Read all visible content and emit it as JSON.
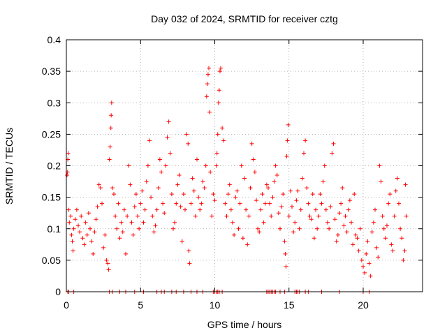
{
  "chart_data": {
    "type": "scatter",
    "title": "Day 032 of 2024, SRMTID for receiver cztg",
    "xlabel": "GPS time / hours",
    "ylabel": "SRMTID / TECUs",
    "xlim": [
      0,
      24
    ],
    "ylim": [
      0,
      0.4
    ],
    "x_ticks": [
      0,
      5,
      10,
      15,
      20
    ],
    "x_tick_labels": [
      "0",
      "5",
      "10",
      "15",
      "20"
    ],
    "y_ticks": [
      0,
      0.05,
      0.1,
      0.15,
      0.2,
      0.25,
      0.3,
      0.35,
      0.4
    ],
    "y_tick_labels": [
      "0",
      "0.05",
      "0.1",
      "0.15",
      "0.2",
      "0.25",
      "0.3",
      "0.35",
      "0.4"
    ],
    "grid": true,
    "marker": "+",
    "color": "#ff0000",
    "series": [
      {
        "name": "SRMTID",
        "points": [
          [
            0.05,
            0.185
          ],
          [
            0.08,
            0.19
          ],
          [
            0.1,
            0.21
          ],
          [
            0.12,
            0.22
          ],
          [
            0.15,
            0.13
          ],
          [
            0.2,
            0.11
          ],
          [
            0.3,
            0.12
          ],
          [
            0.35,
            0.09
          ],
          [
            0.4,
            0.08
          ],
          [
            0.45,
            0.065
          ],
          [
            0.5,
            0.1
          ],
          [
            0.6,
            0.115
          ],
          [
            0.7,
            0.13
          ],
          [
            0.8,
            0.105
          ],
          [
            0.9,
            0.095
          ],
          [
            1.0,
            0.12
          ],
          [
            1.1,
            0.085
          ],
          [
            1.2,
            0.075
          ],
          [
            1.3,
            0.11
          ],
          [
            1.4,
            0.09
          ],
          [
            1.5,
            0.125
          ],
          [
            1.6,
            0.1
          ],
          [
            1.7,
            0.08
          ],
          [
            1.8,
            0.06
          ],
          [
            1.9,
            0.095
          ],
          [
            2.0,
            0.115
          ],
          [
            2.1,
            0.135
          ],
          [
            2.2,
            0.17
          ],
          [
            2.3,
            0.165
          ],
          [
            2.4,
            0.14
          ],
          [
            2.5,
            0.07
          ],
          [
            2.6,
            0.09
          ],
          [
            2.7,
            0.05
          ],
          [
            2.8,
            0.045
          ],
          [
            2.85,
            0.035
          ],
          [
            2.9,
            0.21
          ],
          [
            2.95,
            0.23
          ],
          [
            3.0,
            0.26
          ],
          [
            3.02,
            0.28
          ],
          [
            3.05,
            0.3
          ],
          [
            3.1,
            0.165
          ],
          [
            3.2,
            0.155
          ],
          [
            3.3,
            0.12
          ],
          [
            3.4,
            0.1
          ],
          [
            3.5,
            0.14
          ],
          [
            3.6,
            0.085
          ],
          [
            3.7,
            0.11
          ],
          [
            3.8,
            0.095
          ],
          [
            3.9,
            0.13
          ],
          [
            4.0,
            0.06
          ],
          [
            4.1,
            0.12
          ],
          [
            4.2,
            0.2
          ],
          [
            4.3,
            0.17
          ],
          [
            4.4,
            0.11
          ],
          [
            4.5,
            0.09
          ],
          [
            4.6,
            0.135
          ],
          [
            4.7,
            0.155
          ],
          [
            4.8,
            0.12
          ],
          [
            4.9,
            0.1
          ],
          [
            5.0,
            0.14
          ],
          [
            5.1,
            0.16
          ],
          [
            5.2,
            0.11
          ],
          [
            5.3,
            0.13
          ],
          [
            5.4,
            0.175
          ],
          [
            5.5,
            0.2
          ],
          [
            5.6,
            0.24
          ],
          [
            5.7,
            0.15
          ],
          [
            5.8,
            0.12
          ],
          [
            5.9,
            0.095
          ],
          [
            6.0,
            0.105
          ],
          [
            6.1,
            0.13
          ],
          [
            6.2,
            0.165
          ],
          [
            6.3,
            0.21
          ],
          [
            6.4,
            0.19
          ],
          [
            6.5,
            0.14
          ],
          [
            6.6,
            0.125
          ],
          [
            6.7,
            0.2
          ],
          [
            6.8,
            0.245
          ],
          [
            6.9,
            0.27
          ],
          [
            7.0,
            0.22
          ],
          [
            7.1,
            0.155
          ],
          [
            7.2,
            0.1
          ],
          [
            7.3,
            0.11
          ],
          [
            7.4,
            0.14
          ],
          [
            7.5,
            0.17
          ],
          [
            7.6,
            0.185
          ],
          [
            7.7,
            0.135
          ],
          [
            7.8,
            0.08
          ],
          [
            7.9,
            0.155
          ],
          [
            8.0,
            0.13
          ],
          [
            8.1,
            0.25
          ],
          [
            8.2,
            0.235
          ],
          [
            8.25,
            0.065
          ],
          [
            8.3,
            0.045
          ],
          [
            8.4,
            0.14
          ],
          [
            8.5,
            0.18
          ],
          [
            8.6,
            0.16
          ],
          [
            8.7,
            0.12
          ],
          [
            8.8,
            0.21
          ],
          [
            8.9,
            0.15
          ],
          [
            9.0,
            0.13
          ],
          [
            9.1,
            0.14
          ],
          [
            9.2,
            0.175
          ],
          [
            9.3,
            0.165
          ],
          [
            9.4,
            0.2
          ],
          [
            9.45,
            0.31
          ],
          [
            9.5,
            0.33
          ],
          [
            9.55,
            0.345
          ],
          [
            9.6,
            0.355
          ],
          [
            9.65,
            0.285
          ],
          [
            9.7,
            0.19
          ],
          [
            9.8,
            0.12
          ],
          [
            9.9,
            0.155
          ],
          [
            10.0,
            0.145
          ],
          [
            10.1,
            0.2
          ],
          [
            10.15,
            0.22
          ],
          [
            10.2,
            0.25
          ],
          [
            10.25,
            0.3
          ],
          [
            10.3,
            0.32
          ],
          [
            10.35,
            0.35
          ],
          [
            10.4,
            0.355
          ],
          [
            10.5,
            0.26
          ],
          [
            10.6,
            0.24
          ],
          [
            10.7,
            0.14
          ],
          [
            10.8,
            0.12
          ],
          [
            10.9,
            0.155
          ],
          [
            11.0,
            0.17
          ],
          [
            11.1,
            0.13
          ],
          [
            11.2,
            0.11
          ],
          [
            11.3,
            0.09
          ],
          [
            11.4,
            0.15
          ],
          [
            11.5,
            0.16
          ],
          [
            11.6,
            0.1
          ],
          [
            11.7,
            0.14
          ],
          [
            11.8,
            0.2
          ],
          [
            11.9,
            0.085
          ],
          [
            12.0,
            0.18
          ],
          [
            12.1,
            0.13
          ],
          [
            12.2,
            0.075
          ],
          [
            12.3,
            0.12
          ],
          [
            12.4,
            0.165
          ],
          [
            12.5,
            0.235
          ],
          [
            12.6,
            0.21
          ],
          [
            12.7,
            0.19
          ],
          [
            12.8,
            0.145
          ],
          [
            12.9,
            0.1
          ],
          [
            13.0,
            0.095
          ],
          [
            13.1,
            0.13
          ],
          [
            13.2,
            0.155
          ],
          [
            13.3,
            0.11
          ],
          [
            13.4,
            0.14
          ],
          [
            13.5,
            0.17
          ],
          [
            13.6,
            0.165
          ],
          [
            13.7,
            0.14
          ],
          [
            13.8,
            0.12
          ],
          [
            13.9,
            0.15
          ],
          [
            14.0,
            0.175
          ],
          [
            14.1,
            0.2
          ],
          [
            14.2,
            0.185
          ],
          [
            14.3,
            0.125
          ],
          [
            14.4,
            0.1
          ],
          [
            14.5,
            0.135
          ],
          [
            14.6,
            0.155
          ],
          [
            14.7,
            0.08
          ],
          [
            14.75,
            0.06
          ],
          [
            14.8,
            0.04
          ],
          [
            14.85,
            0.215
          ],
          [
            14.9,
            0.24
          ],
          [
            14.95,
            0.265
          ],
          [
            15.0,
            0.12
          ],
          [
            15.1,
            0.16
          ],
          [
            15.2,
            0.135
          ],
          [
            15.3,
            0.095
          ],
          [
            15.4,
            0.11
          ],
          [
            15.5,
            0.145
          ],
          [
            15.6,
            0.16
          ],
          [
            15.7,
            0.1
          ],
          [
            15.8,
            0.13
          ],
          [
            15.9,
            0.18
          ],
          [
            16.0,
            0.22
          ],
          [
            16.1,
            0.24
          ],
          [
            16.2,
            0.165
          ],
          [
            16.3,
            0.14
          ],
          [
            16.4,
            0.12
          ],
          [
            16.5,
            0.115
          ],
          [
            16.6,
            0.155
          ],
          [
            16.7,
            0.085
          ],
          [
            16.8,
            0.13
          ],
          [
            16.9,
            0.1
          ],
          [
            17.0,
            0.12
          ],
          [
            17.1,
            0.155
          ],
          [
            17.2,
            0.14
          ],
          [
            17.3,
            0.175
          ],
          [
            17.4,
            0.2
          ],
          [
            17.5,
            0.13
          ],
          [
            17.6,
            0.11
          ],
          [
            17.7,
            0.1
          ],
          [
            17.8,
            0.135
          ],
          [
            17.9,
            0.22
          ],
          [
            18.0,
            0.235
          ],
          [
            18.1,
            0.115
          ],
          [
            18.2,
            0.08
          ],
          [
            18.3,
            0.09
          ],
          [
            18.4,
            0.125
          ],
          [
            18.5,
            0.14
          ],
          [
            18.6,
            0.165
          ],
          [
            18.7,
            0.105
          ],
          [
            18.8,
            0.12
          ],
          [
            18.9,
            0.095
          ],
          [
            19.0,
            0.13
          ],
          [
            19.1,
            0.145
          ],
          [
            19.2,
            0.11
          ],
          [
            19.3,
            0.075
          ],
          [
            19.4,
            0.155
          ],
          [
            19.5,
            0.09
          ],
          [
            19.6,
            0.085
          ],
          [
            19.7,
            0.065
          ],
          [
            19.8,
            0.1
          ],
          [
            19.9,
            0.05
          ],
          [
            20.0,
            0.04
          ],
          [
            20.1,
            0.03
          ],
          [
            20.2,
            0.06
          ],
          [
            20.3,
            0.08
          ],
          [
            20.4,
            0.045
          ],
          [
            20.5,
            0.025
          ],
          [
            20.6,
            0.095
          ],
          [
            20.7,
            0.11
          ],
          [
            20.8,
            0.13
          ],
          [
            20.9,
            0.07
          ],
          [
            21.0,
            0.055
          ],
          [
            21.1,
            0.2
          ],
          [
            21.2,
            0.175
          ],
          [
            21.3,
            0.12
          ],
          [
            21.4,
            0.1
          ],
          [
            21.5,
            0.085
          ],
          [
            21.6,
            0.105
          ],
          [
            21.7,
            0.14
          ],
          [
            21.8,
            0.155
          ],
          [
            21.9,
            0.075
          ],
          [
            22.0,
            0.065
          ],
          [
            22.1,
            0.12
          ],
          [
            22.2,
            0.16
          ],
          [
            22.3,
            0.18
          ],
          [
            22.4,
            0.14
          ],
          [
            22.5,
            0.1
          ],
          [
            22.6,
            0.085
          ],
          [
            22.7,
            0.05
          ],
          [
            22.8,
            0.065
          ],
          [
            22.85,
            0.17
          ],
          [
            22.9,
            0.12
          ]
        ]
      }
    ],
    "zero_points_x": [
      0.1,
      0.15,
      0.5,
      2.9,
      3.1,
      3.6,
      4.0,
      4.6,
      5.2,
      6.1,
      6.4,
      6.6,
      7.1,
      7.4,
      7.9,
      8.4,
      8.8,
      9.2,
      9.9,
      10.0,
      10.1,
      10.2,
      10.3,
      10.5,
      13.5,
      13.6,
      13.7,
      13.8,
      13.9,
      14.0,
      14.1,
      14.4,
      14.7,
      15.4,
      15.5,
      15.6,
      15.7,
      16.1,
      16.3,
      17.2,
      18.4,
      20.0,
      20.4
    ]
  }
}
